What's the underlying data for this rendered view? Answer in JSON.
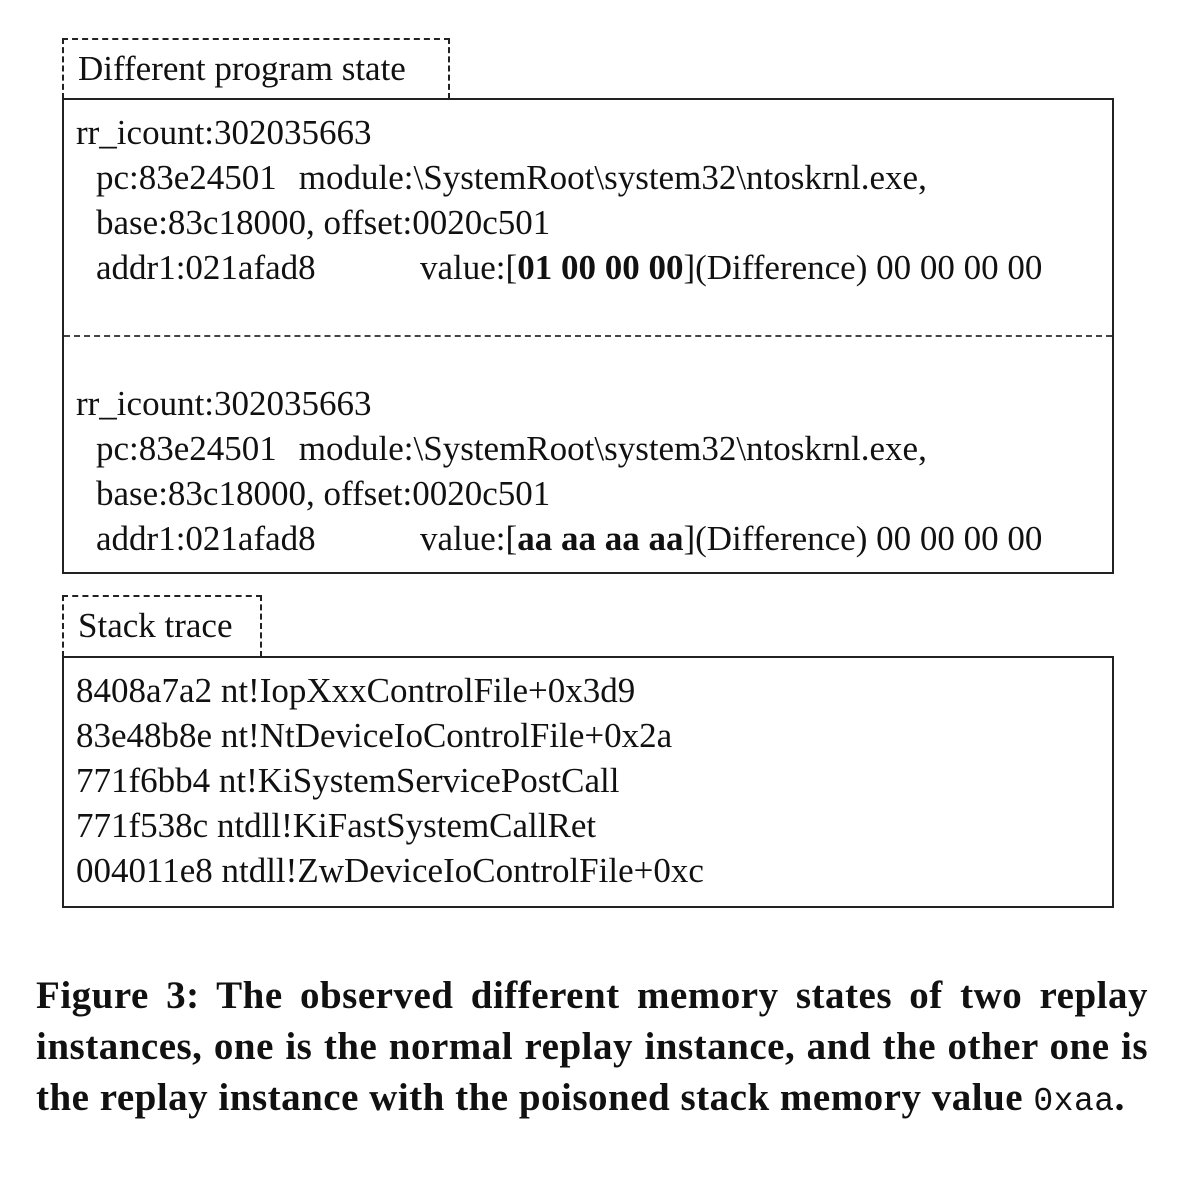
{
  "state_section": {
    "label": "Different program state",
    "entries": [
      {
        "icount": "rr_icount:302035663",
        "pc": "pc:83e24501",
        "module": "module:\\SystemRoot\\system32\\ntoskrnl.exe,",
        "base_offset": "base:83c18000, offset:0020c501",
        "addr": "addr1:021afad8",
        "value_prefix": "value:[",
        "value_bold": "01 00 00 00",
        "value_suffix": "](Difference) 00 00 00 00"
      },
      {
        "icount": "rr_icount:302035663",
        "pc": "pc:83e24501",
        "module": "module:\\SystemRoot\\system32\\ntoskrnl.exe,",
        "base_offset": "base:83c18000, offset:0020c501",
        "addr": "addr1:021afad8",
        "value_prefix": "value:[",
        "value_bold": "aa aa aa aa",
        "value_suffix": "](Difference) 00 00 00 00"
      }
    ]
  },
  "stack_section": {
    "label": "Stack trace",
    "frames": [
      "8408a7a2 nt!IopXxxControlFile+0x3d9",
      "83e48b8e nt!NtDeviceIoControlFile+0x2a",
      "771f6bb4 nt!KiSystemServicePostCall",
      "771f538c ntdll!KiFastSystemCallRet",
      "004011e8 ntdll!ZwDeviceIoControlFile+0xc"
    ]
  },
  "caption": {
    "text": "Figure 3: The observed different memory states of two replay instances, one is the normal replay instance, and the other one is the replay instance with the poisoned stack memory value",
    "code": "0xaa",
    "end": "."
  }
}
